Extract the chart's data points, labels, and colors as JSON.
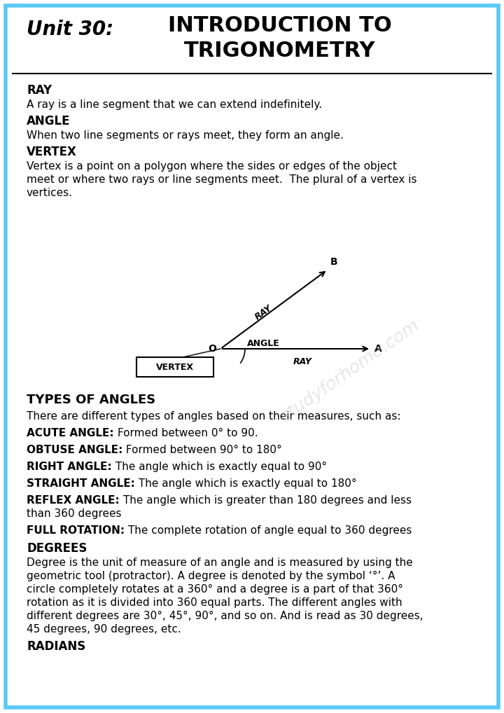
{
  "border_color": "#5bc8f5",
  "background_color": "#ffffff",
  "header_unit": "Unit 30:",
  "header_title_line1": "INTRODUCTION TO",
  "header_title_line2": "TRIGONOMETRY",
  "watermark": "studyforhome.com",
  "sections": [
    {
      "heading": "RAY",
      "body": "A ray is a line segment that we can extend indefinitely."
    },
    {
      "heading": "ANGLE",
      "body": "When two line segments or rays meet, they form an angle."
    },
    {
      "heading": "VERTEX",
      "body": "Vertex is a point on a polygon where the sides or edges of the object\nmeet or where two rays or line segments meet.  The plural of a vertex is\nvertices."
    }
  ],
  "types_section": {
    "heading": "TYPES OF ANGLES",
    "intro": "There are different types of angles based on their measures, such as:",
    "items": [
      {
        "bold": "ACUTE ANGLE:",
        "text": " Formed between 0° to 90."
      },
      {
        "bold": "OBTUSE ANGLE:",
        "text": " Formed between 90° to 180°"
      },
      {
        "bold": "RIGHT ANGLE:",
        "text": " The angle which is exactly equal to 90°"
      },
      {
        "bold": "STRAIGHT ANGLE:",
        "text": " The angle which is exactly equal to 180°"
      },
      {
        "bold": "REFLEX ANGLE:",
        "text": " The angle which is greater than 180 degrees and less than 360 degrees",
        "wrap": true
      },
      {
        "bold": "FULL ROTATION:",
        "text": " The complete rotation of angle equal to 360 degrees"
      }
    ]
  },
  "degrees_section": {
    "heading": "DEGREES",
    "body": "Degree is the unit of measure of an angle and is measured by using the geometric tool (protractor). A degree is denoted by the symbol ‘°’. A circle completely rotates at a 360° and a degree is a part of that 360° rotation as it is divided into 360 equal parts. The different angles with different degrees are 30°, 45°, 90°, and so on. And is read as 30 degrees, 45 degrees, 90 degrees, etc."
  },
  "radians_section": {
    "heading": "RADIANS"
  }
}
